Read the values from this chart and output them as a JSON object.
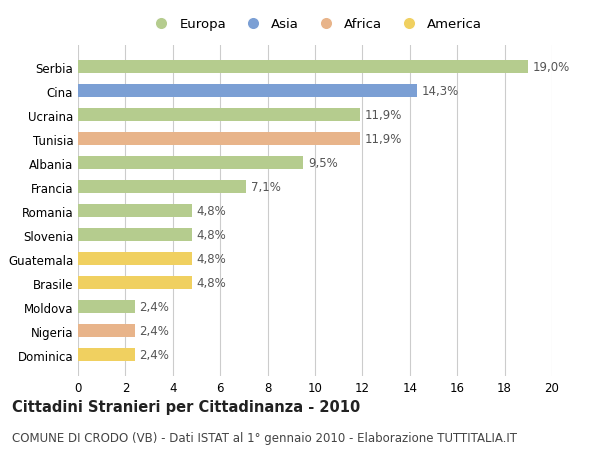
{
  "categories": [
    "Serbia",
    "Cina",
    "Ucraina",
    "Tunisia",
    "Albania",
    "Francia",
    "Romania",
    "Slovenia",
    "Guatemala",
    "Brasile",
    "Moldova",
    "Nigeria",
    "Dominica"
  ],
  "values": [
    19.0,
    14.3,
    11.9,
    11.9,
    9.5,
    7.1,
    4.8,
    4.8,
    4.8,
    4.8,
    2.4,
    2.4,
    2.4
  ],
  "labels": [
    "19,0%",
    "14,3%",
    "11,9%",
    "11,9%",
    "9,5%",
    "7,1%",
    "4,8%",
    "4,8%",
    "4,8%",
    "4,8%",
    "2,4%",
    "2,4%",
    "2,4%"
  ],
  "continents": [
    "Europa",
    "Asia",
    "Europa",
    "Africa",
    "Europa",
    "Europa",
    "Europa",
    "Europa",
    "America",
    "America",
    "Europa",
    "Africa",
    "America"
  ],
  "colors": {
    "Europa": "#b5cc8e",
    "Asia": "#7b9fd4",
    "Africa": "#e8b48a",
    "America": "#f0d060"
  },
  "xlim": [
    0,
    20
  ],
  "xticks": [
    0,
    2,
    4,
    6,
    8,
    10,
    12,
    14,
    16,
    18,
    20
  ],
  "title": "Cittadini Stranieri per Cittadinanza - 2010",
  "subtitle": "COMUNE DI CRODO (VB) - Dati ISTAT al 1° gennaio 2010 - Elaborazione TUTTITALIA.IT",
  "background_color": "#ffffff",
  "plot_bg_color": "#ffffff",
  "bar_height": 0.55,
  "grid_color": "#cccccc",
  "label_color": "#555555",
  "label_fontsize": 8.5,
  "tick_fontsize": 8.5,
  "ytick_fontsize": 8.5,
  "title_fontsize": 10.5,
  "subtitle_fontsize": 8.5,
  "legend_order": [
    "Europa",
    "Asia",
    "Africa",
    "America"
  ]
}
